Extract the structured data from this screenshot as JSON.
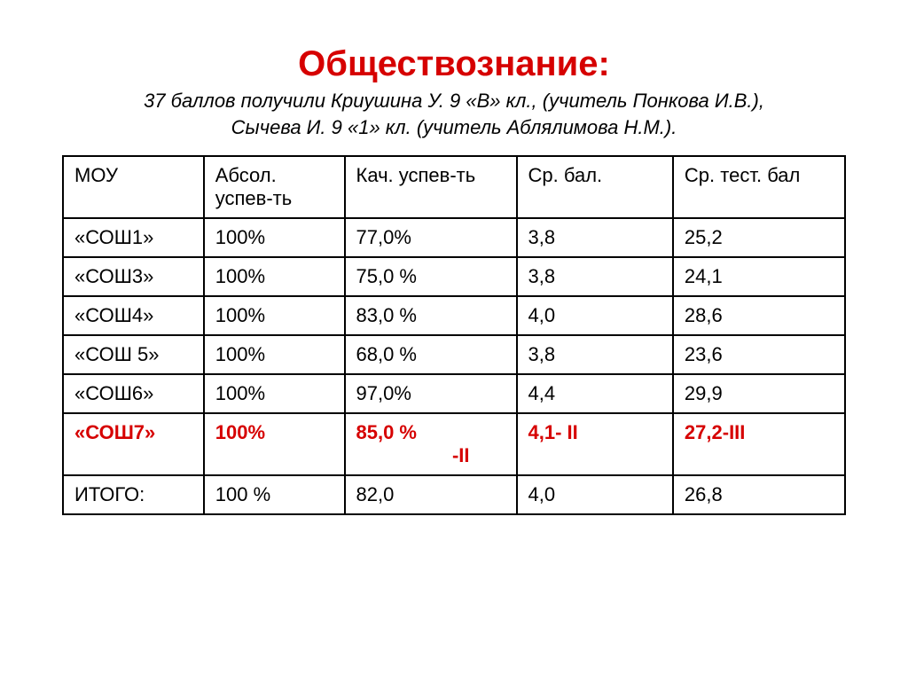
{
  "title_text": "Обществознание:",
  "title_color": "#d60000",
  "subtitle_lines": [
    "37 баллов получили Криушина У. 9 «В» кл., (учитель Понкова И.В.),",
    "Сычева И. 9 «1» кл. (учитель Аблялимова Н.М.)."
  ],
  "subtitle_color": "#000000",
  "table": {
    "row_text_color_default": "#000000",
    "highlight_color": "#d60000",
    "header": {
      "c1": "МОУ",
      "c2": "Абсол. успев-ть",
      "c3": "Кач. успев-ть",
      "c4": "Ср. бал.",
      "c5": "Ср. тест. бал"
    },
    "rows": [
      {
        "c1": "«СОШ1»",
        "c2": "100%",
        "c3": "77,0%",
        "c4": "3,8",
        "c5": "25,2",
        "highlight": false
      },
      {
        "c1": "«СОШ3»",
        "c2": "100%",
        "c3": "75,0 %",
        "c4": "3,8",
        "c5": "24,1",
        "highlight": false
      },
      {
        "c1": "«СОШ4»",
        "c2": "100%",
        "c3": "83,0 %",
        "c4": "4,0",
        "c5": "28,6",
        "highlight": false
      },
      {
        "c1": "«СОШ 5»",
        "c2": "100%",
        "c3": "68,0 %",
        "c4": "3,8",
        "c5": "23,6",
        "highlight": false
      },
      {
        "c1": "«СОШ6»",
        "c2": "100%",
        "c3": "97,0%",
        "c4": "4,4",
        "c5": "29,9",
        "highlight": false
      },
      {
        "c1": "«СОШ7»",
        "c2": "100%",
        "c3": "85,0 %",
        "c3_sub": "-II",
        "c4": "4,1- II",
        "c5": "27,2-III",
        "highlight": true
      },
      {
        "c1": "ИТОГО:",
        "c2": "100 %",
        "c3": "82,0",
        "c4": "4,0",
        "c5": "26,8",
        "highlight": false
      }
    ]
  }
}
